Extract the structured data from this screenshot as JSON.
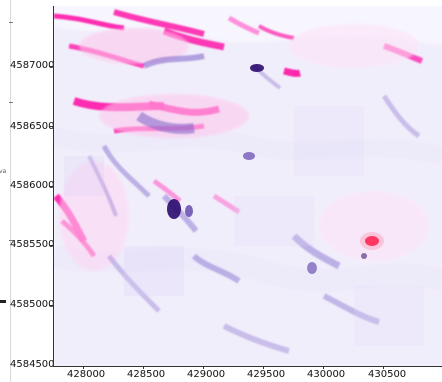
{
  "map": {
    "y_ticks": [
      "4587000",
      "4586500",
      "4586000",
      "4585500",
      "4585000",
      "4584500"
    ],
    "x_ticks": [
      "428000",
      "428500",
      "429000",
      "429500",
      "430000",
      "430500"
    ],
    "colors": {
      "background": "#f3f1fb",
      "positive_strong": "#ff1aa8",
      "positive_light": "#ffc6ec",
      "negative_strong": "#2a0b6e",
      "negative_mid": "#7d63c9",
      "negative_light": "#c9bdf0",
      "hotspot_red": "#ff0033"
    },
    "colorbar_side_labels": [
      "va"
    ]
  }
}
